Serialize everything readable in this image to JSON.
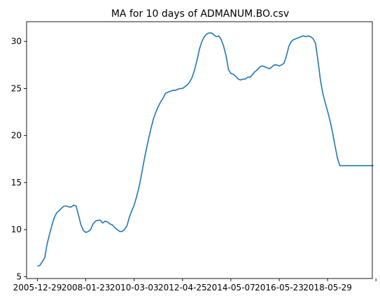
{
  "chart_data": {
    "type": "line",
    "title": "MA for 10 days of ADMANUM.BO.csv",
    "xlabel": "",
    "ylabel": "",
    "xlim": [
      -0.45,
      13.85
    ],
    "ylim": [
      4.8,
      32.1
    ],
    "x_ticks": [
      {
        "value": 0.0,
        "label": "2005-12-29"
      },
      {
        "value": 2.0,
        "label": "2008-01-23"
      },
      {
        "value": 4.0,
        "label": "2010-03-03"
      },
      {
        "value": 6.0,
        "label": "2012-04-25"
      },
      {
        "value": 8.0,
        "label": "2014-05-07"
      },
      {
        "value": 10.0,
        "label": "2016-05-23"
      },
      {
        "value": 12.0,
        "label": "2018-05-29"
      },
      {
        "value": 14.0,
        "label": ""
      }
    ],
    "y_ticks": [
      5,
      10,
      15,
      20,
      25,
      30
    ],
    "color": "#1f77b4",
    "series": [
      {
        "name": "",
        "x": [
          0.0,
          0.1,
          0.2,
          0.3,
          0.4,
          0.5,
          0.6,
          0.7,
          0.8,
          0.9,
          1.0,
          1.1,
          1.2,
          1.3,
          1.4,
          1.5,
          1.6,
          1.7,
          1.8,
          1.9,
          2.0,
          2.1,
          2.2,
          2.3,
          2.4,
          2.5,
          2.6,
          2.7,
          2.8,
          2.9,
          3.0,
          3.1,
          3.2,
          3.3,
          3.4,
          3.5,
          3.6,
          3.7,
          3.8,
          3.9,
          4.0,
          4.1,
          4.2,
          4.3,
          4.4,
          4.5,
          4.6,
          4.7,
          4.8,
          4.9,
          5.0,
          5.1,
          5.2,
          5.3,
          5.4,
          5.5,
          5.6,
          5.7,
          5.8,
          5.9,
          6.0,
          6.1,
          6.2,
          6.3,
          6.4,
          6.5,
          6.6,
          6.7,
          6.8,
          6.9,
          7.0,
          7.1,
          7.2,
          7.3,
          7.4,
          7.5,
          7.6,
          7.7,
          7.8,
          7.9,
          8.0,
          8.1,
          8.2,
          8.3,
          8.4,
          8.5,
          8.6,
          8.7,
          8.8,
          8.9,
          9.0,
          9.1,
          9.2,
          9.3,
          9.4,
          9.5,
          9.6,
          9.7,
          9.8,
          9.9,
          10.0,
          10.1,
          10.2,
          10.3,
          10.4,
          10.5,
          10.6,
          10.7,
          10.8,
          10.9,
          11.0,
          11.1,
          11.2,
          11.3,
          11.4,
          11.5,
          11.6,
          11.7,
          11.8,
          11.9,
          12.0,
          12.1,
          12.2,
          12.3,
          12.4,
          12.5,
          12.6,
          12.7,
          12.8,
          12.9,
          13.0,
          13.1,
          13.2,
          13.3,
          13.4,
          13.5,
          13.6,
          13.7,
          13.8,
          13.9
        ],
        "values": [
          6.1,
          6.2,
          6.6,
          7.0,
          8.5,
          9.5,
          10.5,
          11.3,
          11.8,
          12.0,
          12.3,
          12.5,
          12.5,
          12.4,
          12.4,
          12.6,
          12.5,
          11.5,
          10.5,
          9.9,
          9.7,
          9.8,
          10.0,
          10.6,
          10.9,
          11.0,
          11.0,
          10.7,
          10.9,
          10.8,
          10.6,
          10.5,
          10.2,
          10.0,
          9.8,
          9.8,
          10.0,
          10.4,
          11.3,
          12.0,
          12.6,
          13.5,
          14.5,
          15.8,
          17.2,
          18.5,
          19.7,
          20.8,
          21.8,
          22.5,
          23.1,
          23.6,
          24.0,
          24.5,
          24.6,
          24.7,
          24.8,
          24.8,
          24.9,
          25.0,
          25.0,
          25.2,
          25.4,
          25.7,
          26.2,
          27.0,
          28.0,
          29.2,
          30.0,
          30.5,
          30.8,
          30.9,
          30.9,
          30.7,
          30.5,
          30.6,
          30.2,
          29.5,
          28.5,
          27.0,
          26.6,
          26.5,
          26.3,
          26.0,
          25.9,
          26.0,
          26.0,
          26.2,
          26.2,
          26.5,
          26.8,
          27.0,
          27.3,
          27.4,
          27.3,
          27.2,
          27.1,
          27.3,
          27.5,
          27.5,
          27.4,
          27.5,
          27.7,
          28.5,
          29.5,
          30.0,
          30.2,
          30.3,
          30.4,
          30.5,
          30.6,
          30.5,
          30.6,
          30.5,
          30.3,
          29.8,
          28.0,
          26.0,
          24.5,
          23.5,
          22.6,
          21.6,
          20.4,
          19.0,
          17.7,
          16.8,
          16.8,
          16.8,
          16.8,
          16.8,
          16.8,
          16.8,
          16.8,
          16.8,
          16.8,
          16.8,
          16.8,
          16.8,
          16.8,
          16.8
        ]
      }
    ]
  }
}
